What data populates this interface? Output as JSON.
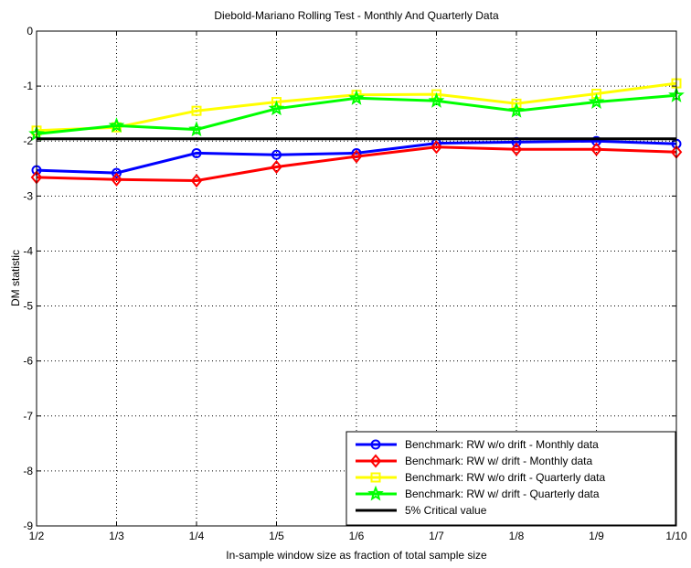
{
  "chart_data": {
    "type": "line",
    "title": "Diebold-Mariano Rolling Test - Monthly And Quarterly Data",
    "xlabel": "In-sample window size as fraction of total sample size",
    "ylabel": "DM statistic",
    "categories": [
      "1/2",
      "1/3",
      "1/4",
      "1/5",
      "1/6",
      "1/7",
      "1/8",
      "1/9",
      "1/10"
    ],
    "ylim": [
      -9,
      0
    ],
    "yticks": [
      "0",
      "-1",
      "-2",
      "-3",
      "-4",
      "-5",
      "-6",
      "-7",
      "-8",
      "-9"
    ],
    "grid": true,
    "legend_position": "bottom-right",
    "series": [
      {
        "name": "Benchmark: RW w/o drift - Monthly data",
        "color": "#0000ff",
        "marker": "circle",
        "values": [
          -2.53,
          -2.58,
          -2.22,
          -2.25,
          -2.22,
          -2.04,
          -2.02,
          -2.0,
          -2.05
        ]
      },
      {
        "name": "Benchmark: RW w/ drift - Monthly data",
        "color": "#ff0000",
        "marker": "diamond",
        "values": [
          -2.66,
          -2.7,
          -2.72,
          -2.47,
          -2.28,
          -2.11,
          -2.15,
          -2.15,
          -2.2
        ]
      },
      {
        "name": "Benchmark: RW w/o drift - Quarterly data",
        "color": "#ffff00",
        "marker": "square",
        "values": [
          -1.81,
          -1.75,
          -1.45,
          -1.29,
          -1.16,
          -1.15,
          -1.32,
          -1.14,
          -0.95
        ]
      },
      {
        "name": "Benchmark: RW w/ drift - Quarterly data",
        "color": "#00ff00",
        "marker": "star",
        "values": [
          -1.87,
          -1.72,
          -1.79,
          -1.41,
          -1.22,
          -1.27,
          -1.45,
          -1.29,
          -1.17
        ]
      },
      {
        "name": "5% Critical value",
        "color": "#000000",
        "marker": "none",
        "values": [
          -1.96,
          -1.96,
          -1.96,
          -1.96,
          -1.96,
          -1.96,
          -1.96,
          -1.96,
          -1.96
        ]
      }
    ]
  }
}
